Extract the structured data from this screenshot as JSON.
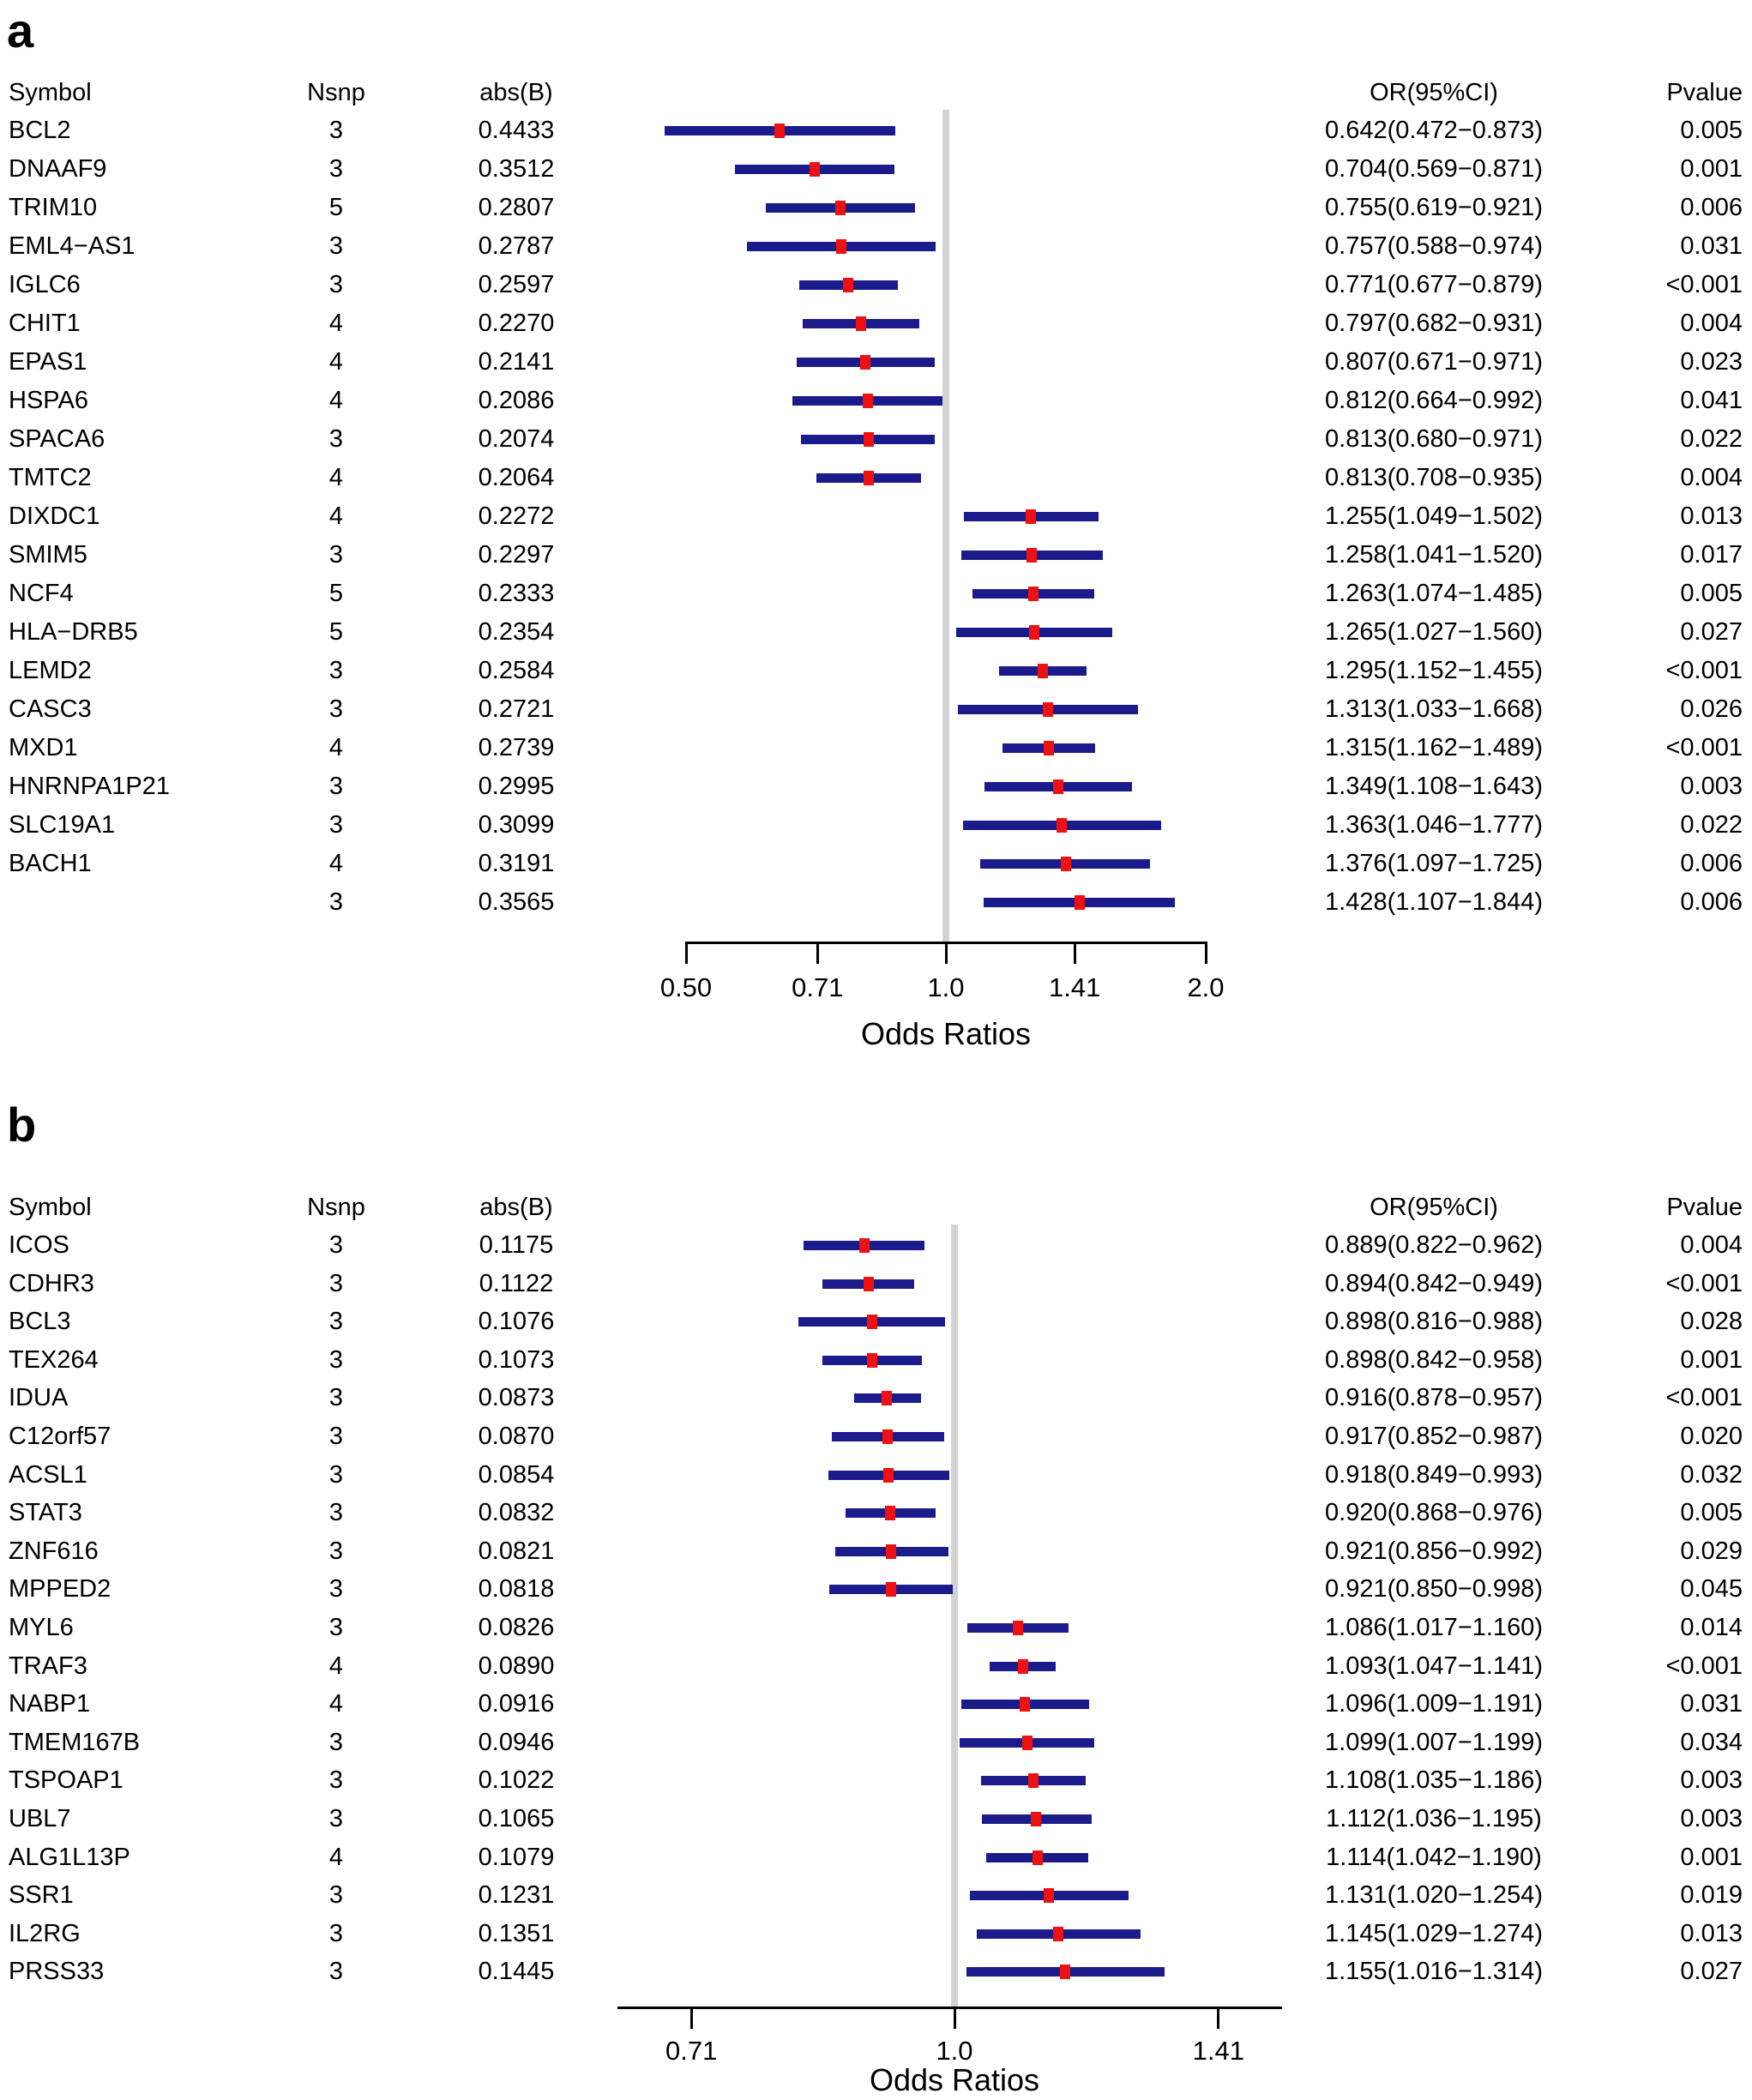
{
  "colors": {
    "bar": "#1b1b8c",
    "marker": "#ed1111",
    "reference_line": "#d3d3d3",
    "axis": "#000000",
    "text": "#000000",
    "background": "#ffffff"
  },
  "chart_data": [
    {
      "type": "forest",
      "panel_label": "a",
      "xlabel": "Odds Ratios",
      "x_scale": "log2",
      "x_ticks": [
        0.5,
        0.71,
        1.0,
        1.41,
        2.0
      ],
      "x_tick_labels": [
        "0.50",
        "0.71",
        "1.0",
        "1.41",
        "2.0"
      ],
      "reference_line": 1.0,
      "columns": {
        "symbol": "Symbol",
        "nsnp": "Nsnp",
        "abs_b": "abs(B)",
        "or_ci": "OR(95%CI)",
        "pvalue": "Pvalue"
      },
      "rows": [
        {
          "symbol": "BCL2",
          "nsnp": "3",
          "abs_b": "0.4433",
          "or": 0.642,
          "ci_low": 0.472,
          "ci_high": 0.873,
          "or_ci": "0.642(0.472−0.873)",
          "pvalue": "0.005"
        },
        {
          "symbol": "DNAAF9",
          "nsnp": "3",
          "abs_b": "0.3512",
          "or": 0.704,
          "ci_low": 0.569,
          "ci_high": 0.871,
          "or_ci": "0.704(0.569−0.871)",
          "pvalue": "0.001"
        },
        {
          "symbol": "TRIM10",
          "nsnp": "5",
          "abs_b": "0.2807",
          "or": 0.755,
          "ci_low": 0.619,
          "ci_high": 0.921,
          "or_ci": "0.755(0.619−0.921)",
          "pvalue": "0.006"
        },
        {
          "symbol": "EML4−AS1",
          "nsnp": "3",
          "abs_b": "0.2787",
          "or": 0.757,
          "ci_low": 0.588,
          "ci_high": 0.974,
          "or_ci": "0.757(0.588−0.974)",
          "pvalue": "0.031"
        },
        {
          "symbol": "IGLC6",
          "nsnp": "3",
          "abs_b": "0.2597",
          "or": 0.771,
          "ci_low": 0.677,
          "ci_high": 0.879,
          "or_ci": "0.771(0.677−0.879)",
          "pvalue": "<0.001"
        },
        {
          "symbol": "CHIT1",
          "nsnp": "4",
          "abs_b": "0.2270",
          "or": 0.797,
          "ci_low": 0.682,
          "ci_high": 0.931,
          "or_ci": "0.797(0.682−0.931)",
          "pvalue": "0.004"
        },
        {
          "symbol": "EPAS1",
          "nsnp": "4",
          "abs_b": "0.2141",
          "or": 0.807,
          "ci_low": 0.671,
          "ci_high": 0.971,
          "or_ci": "0.807(0.671−0.971)",
          "pvalue": "0.023"
        },
        {
          "symbol": "HSPA6",
          "nsnp": "4",
          "abs_b": "0.2086",
          "or": 0.812,
          "ci_low": 0.664,
          "ci_high": 0.992,
          "or_ci": "0.812(0.664−0.992)",
          "pvalue": "0.041"
        },
        {
          "symbol": "SPACA6",
          "nsnp": "3",
          "abs_b": "0.2074",
          "or": 0.813,
          "ci_low": 0.68,
          "ci_high": 0.971,
          "or_ci": "0.813(0.680−0.971)",
          "pvalue": "0.022"
        },
        {
          "symbol": "TMTC2",
          "nsnp": "4",
          "abs_b": "0.2064",
          "or": 0.813,
          "ci_low": 0.708,
          "ci_high": 0.935,
          "or_ci": "0.813(0.708−0.935)",
          "pvalue": "0.004"
        },
        {
          "symbol": "DIXDC1",
          "nsnp": "4",
          "abs_b": "0.2272",
          "or": 1.255,
          "ci_low": 1.049,
          "ci_high": 1.502,
          "or_ci": "1.255(1.049−1.502)",
          "pvalue": "0.013"
        },
        {
          "symbol": "SMIM5",
          "nsnp": "3",
          "abs_b": "0.2297",
          "or": 1.258,
          "ci_low": 1.041,
          "ci_high": 1.52,
          "or_ci": "1.258(1.041−1.520)",
          "pvalue": "0.017"
        },
        {
          "symbol": "NCF4",
          "nsnp": "5",
          "abs_b": "0.2333",
          "or": 1.263,
          "ci_low": 1.074,
          "ci_high": 1.485,
          "or_ci": "1.263(1.074−1.485)",
          "pvalue": "0.005"
        },
        {
          "symbol": "HLA−DRB5",
          "nsnp": "5",
          "abs_b": "0.2354",
          "or": 1.265,
          "ci_low": 1.027,
          "ci_high": 1.56,
          "or_ci": "1.265(1.027−1.560)",
          "pvalue": "0.027"
        },
        {
          "symbol": "LEMD2",
          "nsnp": "3",
          "abs_b": "0.2584",
          "or": 1.295,
          "ci_low": 1.152,
          "ci_high": 1.455,
          "or_ci": "1.295(1.152−1.455)",
          "pvalue": "<0.001"
        },
        {
          "symbol": "CASC3",
          "nsnp": "3",
          "abs_b": "0.2721",
          "or": 1.313,
          "ci_low": 1.033,
          "ci_high": 1.668,
          "or_ci": "1.313(1.033−1.668)",
          "pvalue": "0.026"
        },
        {
          "symbol": "MXD1",
          "nsnp": "4",
          "abs_b": "0.2739",
          "or": 1.315,
          "ci_low": 1.162,
          "ci_high": 1.489,
          "or_ci": "1.315(1.162−1.489)",
          "pvalue": "<0.001"
        },
        {
          "symbol": "HNRNPA1P21",
          "nsnp": "3",
          "abs_b": "0.2995",
          "or": 1.349,
          "ci_low": 1.108,
          "ci_high": 1.643,
          "or_ci": "1.349(1.108−1.643)",
          "pvalue": "0.003"
        },
        {
          "symbol": "SLC19A1",
          "nsnp": "3",
          "abs_b": "0.3099",
          "or": 1.363,
          "ci_low": 1.046,
          "ci_high": 1.777,
          "or_ci": "1.363(1.046−1.777)",
          "pvalue": "0.022"
        },
        {
          "symbol": "BACH1",
          "nsnp": "4",
          "abs_b": "0.3191",
          "or": 1.376,
          "ci_low": 1.097,
          "ci_high": 1.725,
          "or_ci": "1.376(1.097−1.725)",
          "pvalue": "0.006"
        },
        {
          "symbol": "",
          "nsnp": "3",
          "abs_b": "0.3565",
          "or": 1.428,
          "ci_low": 1.107,
          "ci_high": 1.844,
          "or_ci": "1.428(1.107−1.844)",
          "pvalue": "0.006"
        }
      ]
    },
    {
      "type": "forest",
      "panel_label": "b",
      "xlabel": "Odds Ratios",
      "x_scale": "log2",
      "x_ticks": [
        0.71,
        1.0,
        1.41
      ],
      "x_tick_labels": [
        "0.71",
        "1.0",
        "1.41"
      ],
      "reference_line": 1.0,
      "columns": {
        "symbol": "Symbol",
        "nsnp": "Nsnp",
        "abs_b": "abs(B)",
        "or_ci": "OR(95%CI)",
        "pvalue": "Pvalue"
      },
      "rows": [
        {
          "symbol": "ICOS",
          "nsnp": "3",
          "abs_b": "0.1175",
          "or": 0.889,
          "ci_low": 0.822,
          "ci_high": 0.962,
          "or_ci": "0.889(0.822−0.962)",
          "pvalue": "0.004"
        },
        {
          "symbol": "CDHR3",
          "nsnp": "3",
          "abs_b": "0.1122",
          "or": 0.894,
          "ci_low": 0.842,
          "ci_high": 0.949,
          "or_ci": "0.894(0.842−0.949)",
          "pvalue": "<0.001"
        },
        {
          "symbol": "BCL3",
          "nsnp": "3",
          "abs_b": "0.1076",
          "or": 0.898,
          "ci_low": 0.816,
          "ci_high": 0.988,
          "or_ci": "0.898(0.816−0.988)",
          "pvalue": "0.028"
        },
        {
          "symbol": "TEX264",
          "nsnp": "3",
          "abs_b": "0.1073",
          "or": 0.898,
          "ci_low": 0.842,
          "ci_high": 0.958,
          "or_ci": "0.898(0.842−0.958)",
          "pvalue": "0.001"
        },
        {
          "symbol": "IDUA",
          "nsnp": "3",
          "abs_b": "0.0873",
          "or": 0.916,
          "ci_low": 0.878,
          "ci_high": 0.957,
          "or_ci": "0.916(0.878−0.957)",
          "pvalue": "<0.001"
        },
        {
          "symbol": "C12orf57",
          "nsnp": "3",
          "abs_b": "0.0870",
          "or": 0.917,
          "ci_low": 0.852,
          "ci_high": 0.987,
          "or_ci": "0.917(0.852−0.987)",
          "pvalue": "0.020"
        },
        {
          "symbol": "ACSL1",
          "nsnp": "3",
          "abs_b": "0.0854",
          "or": 0.918,
          "ci_low": 0.849,
          "ci_high": 0.993,
          "or_ci": "0.918(0.849−0.993)",
          "pvalue": "0.032"
        },
        {
          "symbol": "STAT3",
          "nsnp": "3",
          "abs_b": "0.0832",
          "or": 0.92,
          "ci_low": 0.868,
          "ci_high": 0.976,
          "or_ci": "0.920(0.868−0.976)",
          "pvalue": "0.005"
        },
        {
          "symbol": "ZNF616",
          "nsnp": "3",
          "abs_b": "0.0821",
          "or": 0.921,
          "ci_low": 0.856,
          "ci_high": 0.992,
          "or_ci": "0.921(0.856−0.992)",
          "pvalue": "0.029"
        },
        {
          "symbol": "MPPED2",
          "nsnp": "3",
          "abs_b": "0.0818",
          "or": 0.921,
          "ci_low": 0.85,
          "ci_high": 0.998,
          "or_ci": "0.921(0.850−0.998)",
          "pvalue": "0.045"
        },
        {
          "symbol": "MYL6",
          "nsnp": "3",
          "abs_b": "0.0826",
          "or": 1.086,
          "ci_low": 1.017,
          "ci_high": 1.16,
          "or_ci": "1.086(1.017−1.160)",
          "pvalue": "0.014"
        },
        {
          "symbol": "TRAF3",
          "nsnp": "4",
          "abs_b": "0.0890",
          "or": 1.093,
          "ci_low": 1.047,
          "ci_high": 1.141,
          "or_ci": "1.093(1.047−1.141)",
          "pvalue": "<0.001"
        },
        {
          "symbol": "NABP1",
          "nsnp": "4",
          "abs_b": "0.0916",
          "or": 1.096,
          "ci_low": 1.009,
          "ci_high": 1.191,
          "or_ci": "1.096(1.009−1.191)",
          "pvalue": "0.031"
        },
        {
          "symbol": "TMEM167B",
          "nsnp": "3",
          "abs_b": "0.0946",
          "or": 1.099,
          "ci_low": 1.007,
          "ci_high": 1.199,
          "or_ci": "1.099(1.007−1.199)",
          "pvalue": "0.034"
        },
        {
          "symbol": "TSPOAP1",
          "nsnp": "3",
          "abs_b": "0.1022",
          "or": 1.108,
          "ci_low": 1.035,
          "ci_high": 1.186,
          "or_ci": "1.108(1.035−1.186)",
          "pvalue": "0.003"
        },
        {
          "symbol": "UBL7",
          "nsnp": "3",
          "abs_b": "0.1065",
          "or": 1.112,
          "ci_low": 1.036,
          "ci_high": 1.195,
          "or_ci": "1.112(1.036−1.195)",
          "pvalue": "0.003"
        },
        {
          "symbol": "ALG1L13P",
          "nsnp": "4",
          "abs_b": "0.1079",
          "or": 1.114,
          "ci_low": 1.042,
          "ci_high": 1.19,
          "or_ci": "1.114(1.042−1.190)",
          "pvalue": "0.001"
        },
        {
          "symbol": "SSR1",
          "nsnp": "3",
          "abs_b": "0.1231",
          "or": 1.131,
          "ci_low": 1.02,
          "ci_high": 1.254,
          "or_ci": "1.131(1.020−1.254)",
          "pvalue": "0.019"
        },
        {
          "symbol": "IL2RG",
          "nsnp": "3",
          "abs_b": "0.1351",
          "or": 1.145,
          "ci_low": 1.029,
          "ci_high": 1.274,
          "or_ci": "1.145(1.029−1.274)",
          "pvalue": "0.013"
        },
        {
          "symbol": "PRSS33",
          "nsnp": "3",
          "abs_b": "0.1445",
          "or": 1.155,
          "ci_low": 1.016,
          "ci_high": 1.314,
          "or_ci": "1.155(1.016−1.314)",
          "pvalue": "0.027"
        }
      ]
    }
  ]
}
